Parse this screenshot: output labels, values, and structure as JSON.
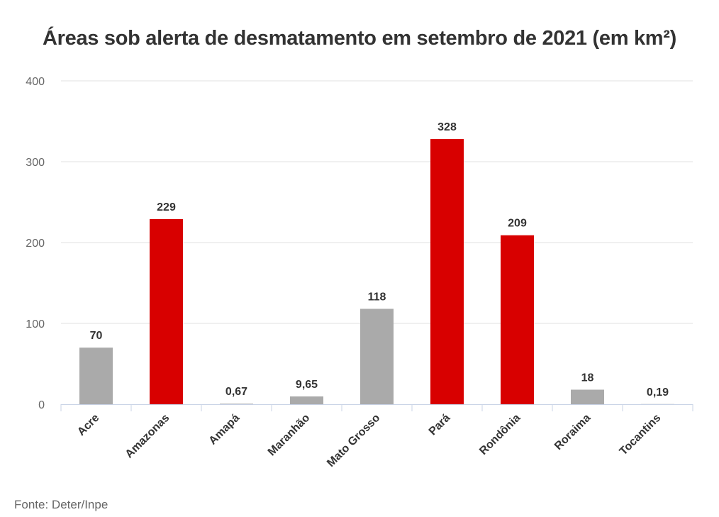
{
  "chart_data": {
    "type": "bar",
    "title": "Áreas sob alerta de desmatamento em setembro de 2021 (em km²)",
    "xlabel": "",
    "ylabel": "",
    "ylim": [
      0,
      400
    ],
    "yticks": [
      0,
      100,
      200,
      300,
      400
    ],
    "grid": true,
    "legend": "none",
    "categories": [
      "Acre",
      "Amazonas",
      "Amapá",
      "Maranhão",
      "Mato Grosso",
      "Pará",
      "Rondônia",
      "Roraima",
      "Tocantins"
    ],
    "values": [
      70,
      229,
      0.67,
      9.65,
      118,
      328,
      209,
      18,
      0.19
    ],
    "value_labels": [
      "70",
      "229",
      "0,67",
      "9,65",
      "118",
      "328",
      "209",
      "18",
      "0,19"
    ],
    "highlight": [
      false,
      true,
      false,
      false,
      false,
      true,
      true,
      false,
      false
    ],
    "colors": {
      "default": "#aaaaaa",
      "highlight": "#d80000",
      "grid": "#e0e0e0",
      "axis": "#c9d3e6"
    }
  },
  "source": "Fonte: Deter/Inpe"
}
